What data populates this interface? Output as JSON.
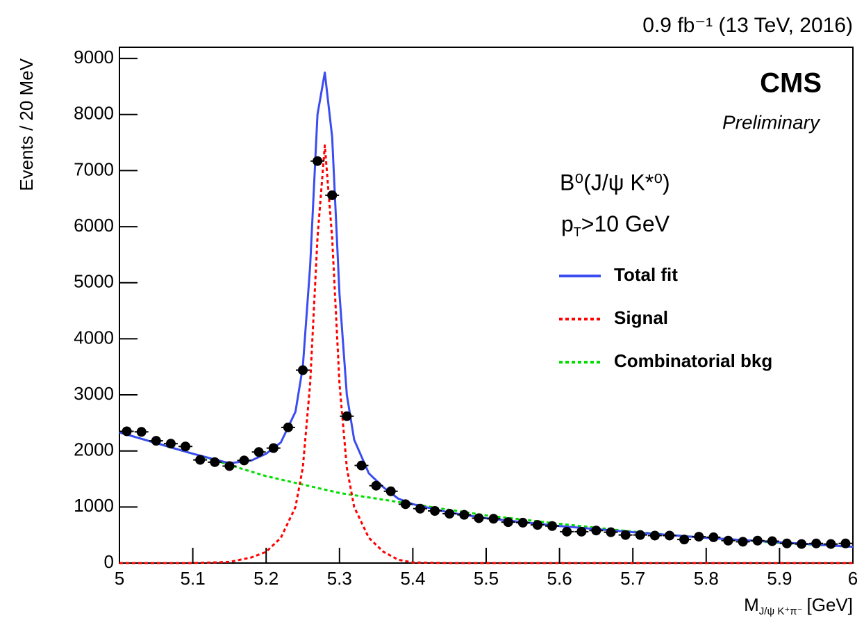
{
  "chart_data": {
    "type": "line",
    "title": "0.9 fb⁻¹ (13 TeV, 2016)",
    "experiment": "CMS",
    "status": "Preliminary",
    "annotations": {
      "process": "B⁰(J/ψ K*⁰)",
      "cut": {
        "base": "p",
        "sub": "T",
        "rest": ">10 GeV"
      }
    },
    "x_label": {
      "base": "M",
      "sub": "J/ψ K⁺π⁻",
      "rest": "[GeV]"
    },
    "y_label": "Events / 20 MeV",
    "xlim": [
      5,
      6
    ],
    "xticks": [
      5,
      5.1,
      5.2,
      5.3,
      5.4,
      5.5,
      5.6,
      5.7,
      5.8,
      5.9,
      6
    ],
    "ylim": [
      0,
      9200
    ],
    "yticks": [
      0,
      1000,
      2000,
      3000,
      4000,
      5000,
      6000,
      7000,
      8000,
      9000
    ],
    "series": [
      {
        "style": "points",
        "color": "#000000",
        "x": [
          5.01,
          5.03,
          5.05,
          5.07,
          5.09,
          5.11,
          5.13,
          5.15,
          5.17,
          5.19,
          5.21,
          5.23,
          5.25,
          5.27,
          5.29,
          5.31,
          5.33,
          5.35,
          5.37,
          5.39,
          5.41,
          5.43,
          5.45,
          5.47,
          5.49,
          5.51,
          5.53,
          5.55,
          5.57,
          5.59,
          5.61,
          5.63,
          5.65,
          5.67,
          5.69,
          5.71,
          5.73,
          5.75,
          5.77,
          5.79,
          5.81,
          5.83,
          5.85,
          5.87,
          5.89,
          5.91,
          5.93,
          5.95,
          5.97,
          5.99
        ],
        "values": [
          2350,
          2340,
          2180,
          2130,
          2080,
          1840,
          1800,
          1730,
          1830,
          1980,
          2050,
          2420,
          3440,
          7170,
          6560,
          2620,
          1740,
          1380,
          1280,
          1050,
          970,
          930,
          880,
          860,
          800,
          790,
          730,
          720,
          680,
          660,
          560,
          560,
          580,
          550,
          500,
          500,
          490,
          490,
          420,
          470,
          460,
          400,
          380,
          400,
          390,
          350,
          340,
          350,
          340,
          350
        ]
      },
      {
        "name": "Total fit",
        "style": "solid",
        "color": "#3b4cf0",
        "x": [
          5.0,
          5.1,
          5.15,
          5.18,
          5.2,
          5.22,
          5.24,
          5.25,
          5.26,
          5.27,
          5.28,
          5.29,
          5.3,
          5.31,
          5.32,
          5.34,
          5.36,
          5.38,
          5.4,
          5.45,
          5.5,
          5.6,
          5.7,
          5.8,
          5.9,
          6.0
        ],
        "values": [
          2330,
          1950,
          1780,
          1830,
          1950,
          2150,
          2700,
          3500,
          5300,
          8000,
          8750,
          7600,
          4800,
          3000,
          2200,
          1600,
          1350,
          1150,
          1050,
          900,
          800,
          660,
          550,
          450,
          370,
          290
        ]
      },
      {
        "name": "Signal",
        "style": "dashed",
        "color": "#ff0000",
        "x": [
          5.0,
          5.1,
          5.15,
          5.18,
          5.2,
          5.22,
          5.24,
          5.25,
          5.26,
          5.27,
          5.28,
          5.29,
          5.3,
          5.31,
          5.32,
          5.34,
          5.36,
          5.38,
          5.4,
          5.45,
          6.0
        ],
        "values": [
          0,
          0,
          20,
          100,
          200,
          450,
          1000,
          1700,
          3200,
          5800,
          7450,
          5800,
          3200,
          1700,
          1000,
          450,
          200,
          60,
          10,
          0,
          0
        ]
      },
      {
        "name": "Combinatorial bkg",
        "style": "dashed",
        "color": "#00dd00",
        "x": [
          5.0,
          5.1,
          5.2,
          5.3,
          5.4,
          5.5,
          5.6,
          5.7,
          5.8,
          5.9,
          6.0
        ],
        "values": [
          2330,
          1950,
          1550,
          1250,
          1050,
          850,
          700,
          560,
          450,
          360,
          290
        ]
      }
    ]
  }
}
